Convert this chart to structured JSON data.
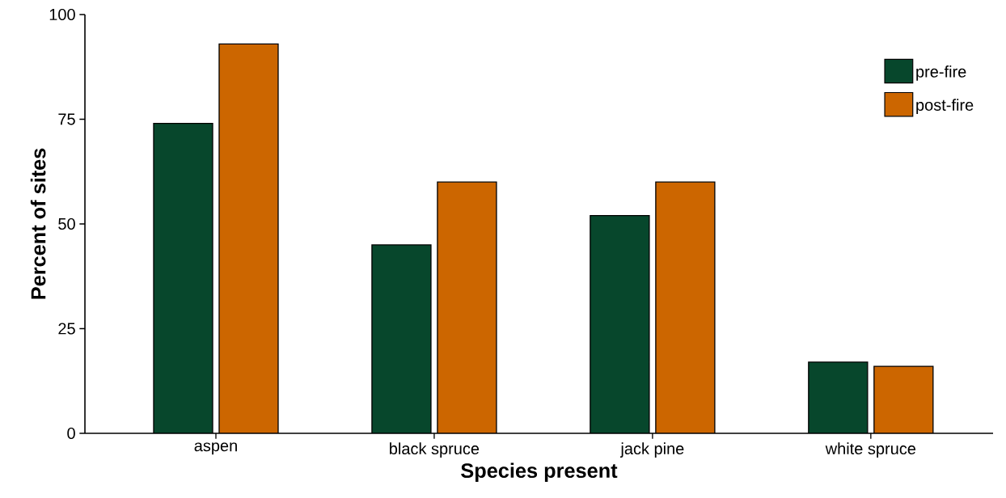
{
  "chart_data": {
    "type": "bar",
    "xlabel": "Species present",
    "ylabel": "Percent of sites",
    "categories": [
      "aspen",
      "black spruce",
      "jack pine",
      "white spruce"
    ],
    "series": [
      {
        "name": "pre-fire",
        "color": "#07472c",
        "values": [
          74,
          45,
          52,
          17
        ]
      },
      {
        "name": "post-fire",
        "color": "#cc6600",
        "values": [
          93,
          60,
          60,
          16
        ]
      }
    ],
    "ylim": [
      0,
      100
    ],
    "yticks": [
      0,
      25,
      50,
      75,
      100
    ],
    "grid": false,
    "legend": "top right"
  }
}
